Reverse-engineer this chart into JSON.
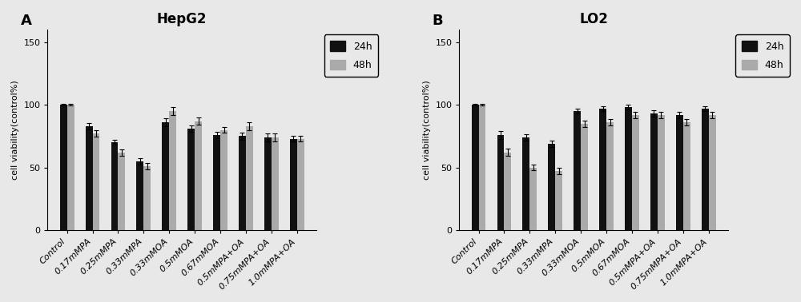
{
  "hepg2_title": "HepG2",
  "lo2_title": "LO2",
  "panel_a": "A",
  "panel_b": "B",
  "categories": [
    "Control",
    "0.17mMPA",
    "0.25mMPA",
    "0.33mMPA",
    "0.33mMOA",
    "0.5mMOA",
    "0.67mMOA",
    "0.5mMPA+OA",
    "0.75mMPA+OA",
    "1.0mMPA+OA"
  ],
  "hepg2_24h": [
    100,
    83,
    70,
    55,
    86,
    81,
    76,
    75,
    74,
    73
  ],
  "hepg2_48h": [
    100,
    77,
    62,
    51,
    95,
    87,
    80,
    83,
    74,
    73
  ],
  "hepg2_24h_err": [
    0.8,
    2.5,
    2,
    2.5,
    3,
    2.5,
    2.5,
    3,
    3,
    2
  ],
  "hepg2_48h_err": [
    0.8,
    2.5,
    2.5,
    2.5,
    3,
    3,
    2.5,
    3,
    3,
    2.5
  ],
  "lo2_24h": [
    100,
    76,
    74,
    69,
    95,
    97,
    98,
    93,
    92,
    97
  ],
  "lo2_48h": [
    100,
    62,
    50,
    47,
    85,
    86,
    92,
    92,
    86,
    92
  ],
  "lo2_24h_err": [
    0.8,
    3,
    2.5,
    2.5,
    2,
    2,
    2,
    2.5,
    2.5,
    2
  ],
  "lo2_48h_err": [
    0.8,
    3,
    2.5,
    2.5,
    2.5,
    2.5,
    2.5,
    2.5,
    2.5,
    2.5
  ],
  "ylabel": "cell viability(control%)",
  "ylim": [
    0,
    160
  ],
  "yticks": [
    0,
    50,
    100,
    150
  ],
  "color_24h": "#111111",
  "color_48h": "#aaaaaa",
  "bar_width": 0.28,
  "legend_24h": "24h",
  "legend_48h": "48h",
  "bg_color": "#e8e8e8",
  "title_fontsize": 12,
  "label_fontsize": 8,
  "ylabel_fontsize": 8
}
